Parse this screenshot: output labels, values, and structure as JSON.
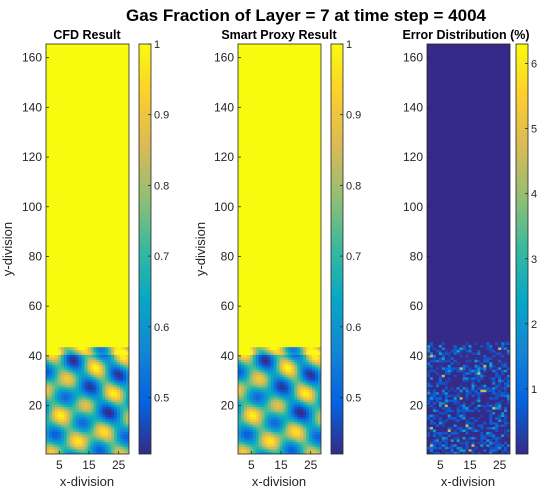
{
  "title": "Gas Fraction of Layer = 7 at time step = 4004",
  "chart_data": [
    {
      "type": "heatmap",
      "title": "CFD Result",
      "xlabel": "x-division",
      "ylabel": "y-division",
      "x_range": [
        1,
        28
      ],
      "y_range": [
        1,
        165
      ],
      "x_ticks": [
        "5",
        "15",
        "25"
      ],
      "y_ticks": [
        "20",
        "40",
        "60",
        "80",
        "100",
        "120",
        "140",
        "160"
      ],
      "colorbar_range": [
        0.42,
        1
      ],
      "colorbar_ticks": [
        "0.5",
        "0.6",
        "0.7",
        "0.8",
        "0.9",
        "1"
      ],
      "summary": {
        "uniform_value_above_y": 43,
        "uniform_value": 1,
        "mixed_region_y": [
          1,
          43
        ],
        "mixed_value_range": [
          0.42,
          1
        ]
      }
    },
    {
      "type": "heatmap",
      "title": "Smart Proxy Result",
      "xlabel": "x-division",
      "ylabel": "y-division",
      "x_range": [
        1,
        28
      ],
      "y_range": [
        1,
        165
      ],
      "x_ticks": [
        "5",
        "15",
        "25"
      ],
      "y_ticks": [
        "20",
        "40",
        "60",
        "80",
        "100",
        "120",
        "140",
        "160"
      ],
      "colorbar_range": [
        0.42,
        1
      ],
      "colorbar_ticks": [
        "0.5",
        "0.6",
        "0.7",
        "0.8",
        "0.9",
        "1"
      ],
      "summary": {
        "uniform_value_above_y": 43,
        "uniform_value": 1,
        "mixed_region_y": [
          1,
          43
        ],
        "mixed_value_range": [
          0.42,
          1
        ]
      }
    },
    {
      "type": "heatmap",
      "title": "Error Distribution (%)",
      "xlabel": "x-division",
      "ylabel": "",
      "x_range": [
        1,
        28
      ],
      "y_range": [
        1,
        165
      ],
      "x_ticks": [
        "5",
        "15",
        "25"
      ],
      "y_ticks": [
        "20",
        "40",
        "60",
        "80",
        "100",
        "120",
        "140",
        "160"
      ],
      "colorbar_range": [
        0,
        6.3
      ],
      "colorbar_ticks": [
        "1",
        "2",
        "3",
        "4",
        "5",
        "6"
      ],
      "summary": {
        "uniform_value_above_y": 45,
        "uniform_value": 0,
        "error_region_y": [
          1,
          45
        ],
        "max_error": 6.3
      }
    }
  ]
}
